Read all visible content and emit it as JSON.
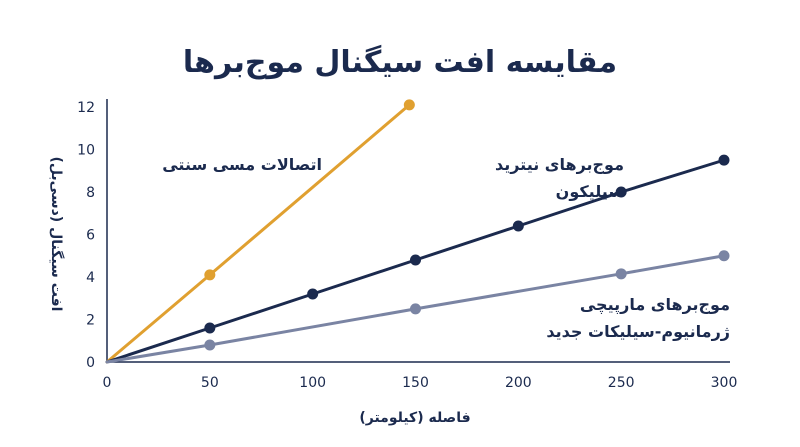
{
  "chart_data": {
    "type": "line",
    "title": "مقایسه افت سیگنال موج‌برها",
    "xlabel": "فاصله (کیلومتر)",
    "ylabel": "افت سیگنال (دسی‌بل)",
    "xlim": [
      0,
      300
    ],
    "ylim": [
      0,
      12
    ],
    "xticks": [
      0,
      50,
      100,
      150,
      200,
      250,
      300
    ],
    "yticks": [
      0,
      2,
      4,
      6,
      8,
      10,
      12
    ],
    "grid": false,
    "legend": "inline",
    "series": [
      {
        "label_lines": [
          "اتصالات مسی سنتی"
        ],
        "color": "#e0a030",
        "x": [
          0,
          50,
          147
        ],
        "y": [
          0,
          4.1,
          12.1
        ]
      },
      {
        "label_lines": [
          "موج‌برهای نیترید",
          "سیلیکون"
        ],
        "color": "#1b2a4e",
        "x": [
          0,
          50,
          100,
          150,
          200,
          250,
          300
        ],
        "y": [
          0,
          1.6,
          3.2,
          4.8,
          6.4,
          8.0,
          9.5
        ]
      },
      {
        "label_lines": [
          "موج‌برهای مارپیچی",
          "ژرمانیوم-سیلیکات جدید"
        ],
        "color": "#7a84a3",
        "x": [
          0,
          50,
          150,
          250,
          300
        ],
        "y": [
          0,
          0.8,
          2.5,
          4.15,
          5.0
        ]
      }
    ]
  }
}
